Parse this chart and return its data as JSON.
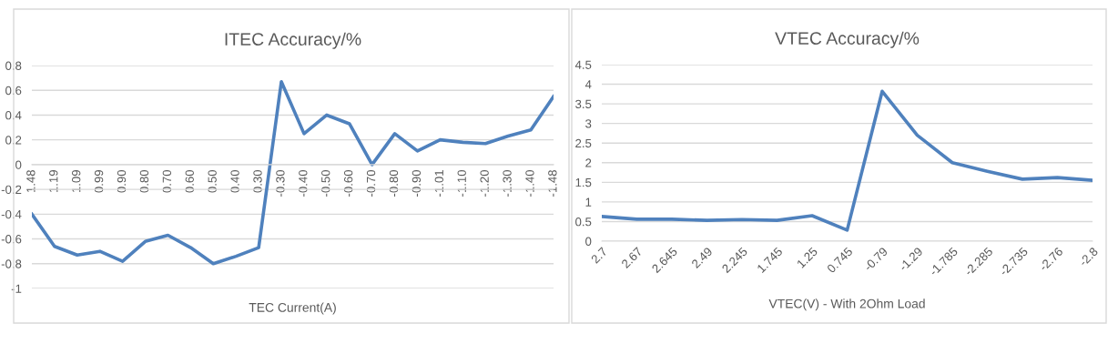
{
  "chart_data": [
    {
      "type": "line",
      "title": "ITEC Accuracy/%",
      "xlabel": "TEC Current(A)",
      "categories": [
        "1.48",
        "1.19",
        "1.09",
        "0.99",
        "0.90",
        "0.80",
        "0.70",
        "0.60",
        "0.50",
        "0.40",
        "0.30",
        "-0.30",
        "-0.40",
        "-0.50",
        "-0.60",
        "-0.70",
        "-0.80",
        "-0.90",
        "-1.01",
        "-1.10",
        "-1.20",
        "-1.30",
        "-1.40",
        "-1.48"
      ],
      "series": [
        {
          "color": "#4f81bd",
          "values": [
            -0.4,
            -0.66,
            -0.73,
            -0.7,
            -0.78,
            -0.62,
            -0.57,
            -0.67,
            -0.8,
            -0.74,
            -0.67,
            0.67,
            0.25,
            0.4,
            0.33,
            0.0,
            0.25,
            0.11,
            0.2,
            0.18,
            0.17,
            0.23,
            0.28,
            0.55
          ]
        }
      ],
      "ylim": [
        -1,
        0.8
      ],
      "yticks": [
        -1,
        -0.8,
        -0.6,
        -0.4,
        -0.2,
        0,
        0.2,
        0.4,
        0.6,
        0.8
      ],
      "grid": "y",
      "legend": false,
      "marker": "none",
      "line_style": "solid"
    },
    {
      "type": "line",
      "title": "VTEC Accuracy/%",
      "xlabel": "VTEC(V) - With 2Ohm Load",
      "categories": [
        "2.7",
        "2.67",
        "2.645",
        "2.49",
        "2.245",
        "1.745",
        "1.25",
        "0.745",
        "-0.79",
        "-1.29",
        "-1.785",
        "-2.285",
        "-2.735",
        "-2.76",
        "-2.8"
      ],
      "series": [
        {
          "color": "#4f81bd",
          "values": [
            0.63,
            0.56,
            0.56,
            0.53,
            0.55,
            0.53,
            0.65,
            0.28,
            3.82,
            2.7,
            2.0,
            1.78,
            1.58,
            1.62,
            1.55
          ]
        }
      ],
      "ylim": [
        0,
        4.5
      ],
      "yticks": [
        0,
        0.5,
        1,
        1.5,
        2,
        2.5,
        3,
        3.5,
        4,
        4.5
      ],
      "grid": "y",
      "legend": false,
      "marker": "none",
      "line_style": "solid"
    }
  ]
}
